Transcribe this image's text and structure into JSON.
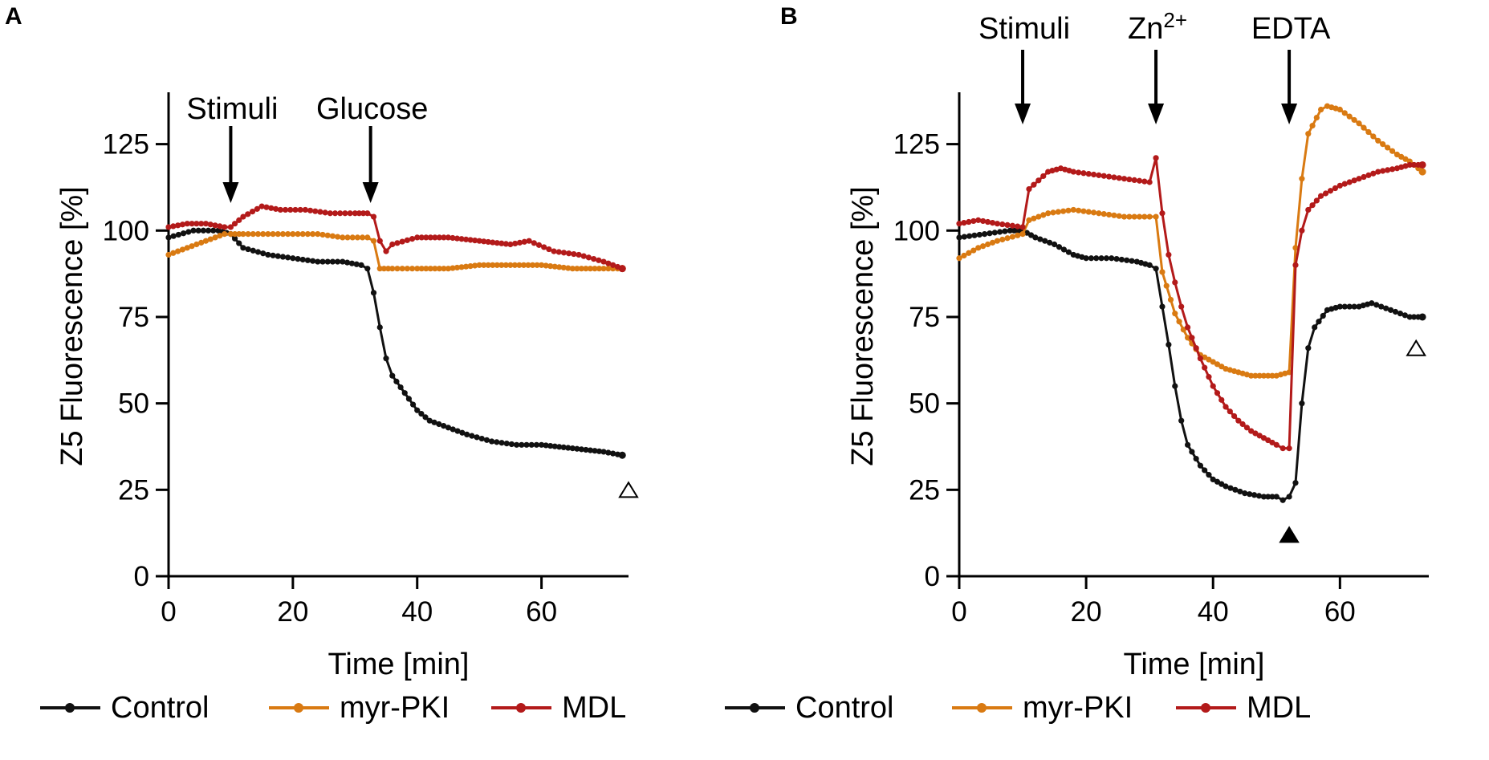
{
  "colors": {
    "Control": "#111111",
    "myr-PKI": "#d97a12",
    "MDL": "#b31a1a"
  },
  "legend": [
    {
      "name": "Control",
      "color": "#111111"
    },
    {
      "name": "myr-PKI",
      "color": "#d97a12"
    },
    {
      "name": "MDL",
      "color": "#b31a1a"
    }
  ],
  "chart_data": [
    {
      "panel": "A",
      "type": "line",
      "xlabel": "Time [min]",
      "ylabel": "Z5 Fluorescence [%]",
      "xlim": [
        0,
        74
      ],
      "ylim": [
        0,
        140
      ],
      "xticks": [
        0,
        20,
        40,
        60
      ],
      "yticks": [
        0,
        25,
        50,
        75,
        100,
        125
      ],
      "annotations": [
        {
          "text": "Stimuli",
          "x": 10
        },
        {
          "text": "Glucose",
          "x": 32.5
        }
      ],
      "markers": [
        {
          "symbol": "open-triangle",
          "x": 74,
          "y": 25
        }
      ],
      "series": [
        {
          "name": "Control",
          "points": [
            [
              0,
              98
            ],
            [
              4,
              100
            ],
            [
              8,
              100
            ],
            [
              10,
              99
            ],
            [
              12,
              95
            ],
            [
              16,
              93
            ],
            [
              20,
              92
            ],
            [
              24,
              91
            ],
            [
              28,
              91
            ],
            [
              31,
              90
            ],
            [
              32,
              89
            ],
            [
              33,
              82
            ],
            [
              34,
              72
            ],
            [
              35,
              63
            ],
            [
              36,
              58
            ],
            [
              38,
              53
            ],
            [
              40,
              48
            ],
            [
              42,
              45
            ],
            [
              45,
              43
            ],
            [
              48,
              41
            ],
            [
              52,
              39
            ],
            [
              56,
              38
            ],
            [
              60,
              38
            ],
            [
              65,
              37
            ],
            [
              70,
              36
            ],
            [
              73,
              35
            ]
          ]
        },
        {
          "name": "myr-PKI",
          "points": [
            [
              0,
              93
            ],
            [
              3,
              95
            ],
            [
              6,
              97
            ],
            [
              9,
              99
            ],
            [
              10,
              99
            ],
            [
              12,
              99
            ],
            [
              16,
              99
            ],
            [
              20,
              99
            ],
            [
              24,
              99
            ],
            [
              28,
              98
            ],
            [
              32,
              98
            ],
            [
              33,
              97
            ],
            [
              34,
              89
            ],
            [
              36,
              89
            ],
            [
              40,
              89
            ],
            [
              45,
              89
            ],
            [
              50,
              90
            ],
            [
              55,
              90
            ],
            [
              60,
              90
            ],
            [
              65,
              89
            ],
            [
              70,
              89
            ],
            [
              73,
              89
            ]
          ]
        },
        {
          "name": "MDL",
          "points": [
            [
              0,
              101
            ],
            [
              3,
              102
            ],
            [
              6,
              102
            ],
            [
              9,
              101
            ],
            [
              10,
              101
            ],
            [
              12,
              104
            ],
            [
              15,
              107
            ],
            [
              18,
              106
            ],
            [
              22,
              106
            ],
            [
              26,
              105
            ],
            [
              30,
              105
            ],
            [
              32,
              105
            ],
            [
              33,
              104
            ],
            [
              34,
              97
            ],
            [
              35,
              94
            ],
            [
              36,
              96
            ],
            [
              40,
              98
            ],
            [
              45,
              98
            ],
            [
              50,
              97
            ],
            [
              55,
              96
            ],
            [
              58,
              97
            ],
            [
              62,
              94
            ],
            [
              66,
              93
            ],
            [
              70,
              91
            ],
            [
              73,
              89
            ]
          ]
        }
      ]
    },
    {
      "panel": "B",
      "type": "line",
      "xlabel": "Time [min]",
      "ylabel": "Z5 Fluorescence [%]",
      "xlim": [
        0,
        74
      ],
      "ylim": [
        0,
        140
      ],
      "xticks": [
        0,
        20,
        40,
        60
      ],
      "yticks": [
        0,
        25,
        50,
        75,
        100,
        125
      ],
      "annotations": [
        {
          "text": "Stimuli",
          "x": 10
        },
        {
          "text": "Zn",
          "superscript": "2+",
          "x": 31
        },
        {
          "text": "EDTA",
          "x": 52
        }
      ],
      "markers": [
        {
          "symbol": "filled-triangle",
          "x": 52,
          "y": 12
        },
        {
          "symbol": "open-triangle",
          "x": 72,
          "y": 66
        }
      ],
      "series": [
        {
          "name": "Control",
          "points": [
            [
              0,
              98
            ],
            [
              4,
              99
            ],
            [
              8,
              100
            ],
            [
              10,
              100
            ],
            [
              12,
              98
            ],
            [
              15,
              96
            ],
            [
              18,
              93
            ],
            [
              20,
              92
            ],
            [
              24,
              92
            ],
            [
              28,
              91
            ],
            [
              30,
              90
            ],
            [
              31,
              89
            ],
            [
              32,
              78
            ],
            [
              33,
              67
            ],
            [
              34,
              55
            ],
            [
              35,
              45
            ],
            [
              36,
              38
            ],
            [
              38,
              32
            ],
            [
              40,
              28
            ],
            [
              42,
              26
            ],
            [
              45,
              24
            ],
            [
              48,
              23
            ],
            [
              50,
              23
            ],
            [
              51,
              22
            ],
            [
              52,
              23
            ],
            [
              53,
              27
            ],
            [
              54,
              50
            ],
            [
              55,
              66
            ],
            [
              56,
              72
            ],
            [
              58,
              77
            ],
            [
              60,
              78
            ],
            [
              63,
              78
            ],
            [
              65,
              79
            ],
            [
              68,
              77
            ],
            [
              71,
              75
            ],
            [
              73,
              75
            ]
          ]
        },
        {
          "name": "myr-PKI",
          "points": [
            [
              0,
              92
            ],
            [
              3,
              95
            ],
            [
              6,
              97
            ],
            [
              10,
              99
            ],
            [
              11,
              103
            ],
            [
              14,
              105
            ],
            [
              18,
              106
            ],
            [
              22,
              105
            ],
            [
              26,
              104
            ],
            [
              30,
              104
            ],
            [
              31,
              104
            ],
            [
              32,
              88
            ],
            [
              34,
              76
            ],
            [
              36,
              69
            ],
            [
              38,
              64
            ],
            [
              40,
              62
            ],
            [
              42,
              60
            ],
            [
              44,
              59
            ],
            [
              46,
              58
            ],
            [
              48,
              58
            ],
            [
              50,
              58
            ],
            [
              52,
              59
            ],
            [
              53,
              95
            ],
            [
              54,
              115
            ],
            [
              55,
              128
            ],
            [
              57,
              135
            ],
            [
              58,
              136
            ],
            [
              60,
              135
            ],
            [
              63,
              131
            ],
            [
              66,
              126
            ],
            [
              69,
              122
            ],
            [
              71,
              120
            ],
            [
              73,
              117
            ]
          ]
        },
        {
          "name": "MDL",
          "points": [
            [
              0,
              102
            ],
            [
              3,
              103
            ],
            [
              6,
              102
            ],
            [
              10,
              101
            ],
            [
              11,
              112
            ],
            [
              14,
              117
            ],
            [
              16,
              118
            ],
            [
              18,
              117
            ],
            [
              22,
              116
            ],
            [
              26,
              115
            ],
            [
              30,
              114
            ],
            [
              31,
              121
            ],
            [
              32,
              105
            ],
            [
              33,
              93
            ],
            [
              34,
              85
            ],
            [
              35,
              78
            ],
            [
              36,
              72
            ],
            [
              38,
              63
            ],
            [
              40,
              55
            ],
            [
              42,
              49
            ],
            [
              44,
              45
            ],
            [
              46,
              42
            ],
            [
              48,
              40
            ],
            [
              50,
              38
            ],
            [
              51,
              37
            ],
            [
              52,
              37
            ],
            [
              53,
              90
            ],
            [
              54,
              100
            ],
            [
              55,
              106
            ],
            [
              57,
              110
            ],
            [
              60,
              113
            ],
            [
              63,
              115
            ],
            [
              66,
              117
            ],
            [
              69,
              118
            ],
            [
              71,
              119
            ],
            [
              73,
              119
            ]
          ]
        }
      ]
    }
  ]
}
